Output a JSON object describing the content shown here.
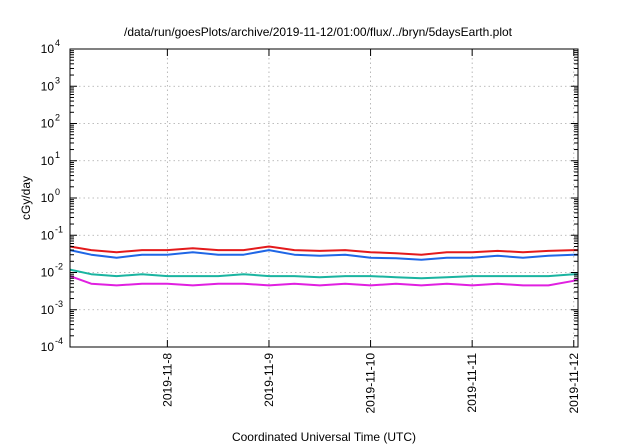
{
  "chart_data": {
    "type": "line",
    "title": "/data/run/goesPlots/archive/2019-11-12/01:00/flux/../bryn/5daysEarth.plot",
    "xlabel": "Coordinated Universal Time (UTC)",
    "ylabel": "cGy/day",
    "y_scale": "log",
    "ylim": [
      0.0001,
      10000
    ],
    "xlim": [
      "2019-11-07T01:00",
      "2019-11-12T01:00"
    ],
    "grid": true,
    "legend": "none",
    "x_ticks": [
      {
        "label": "2019-11-8",
        "value": "2019-11-08T00:00"
      },
      {
        "label": "2019-11-9",
        "value": "2019-11-09T00:00"
      },
      {
        "label": "2019-11-10",
        "value": "2019-11-10T00:00"
      },
      {
        "label": "2019-11-11",
        "value": "2019-11-11T00:00"
      },
      {
        "label": "2019-11-12",
        "value": "2019-11-12T00:00"
      }
    ],
    "y_ticks": [
      {
        "base": "10",
        "exp": "-4",
        "value": 0.0001
      },
      {
        "base": "10",
        "exp": "-3",
        "value": 0.001
      },
      {
        "base": "10",
        "exp": "-2",
        "value": 0.01
      },
      {
        "base": "10",
        "exp": "-1",
        "value": 0.1
      },
      {
        "base": "10",
        "exp": "0",
        "value": 1
      },
      {
        "base": "10",
        "exp": "1",
        "value": 10
      },
      {
        "base": "10",
        "exp": "2",
        "value": 100
      },
      {
        "base": "10",
        "exp": "3",
        "value": 1000
      },
      {
        "base": "10",
        "exp": "4",
        "value": 10000
      }
    ],
    "series": [
      {
        "color": "#e31a1c",
        "x": [
          "2019-11-07T01:00",
          "2019-11-07T06:00",
          "2019-11-07T12:00",
          "2019-11-07T18:00",
          "2019-11-08T00:00",
          "2019-11-08T06:00",
          "2019-11-08T12:00",
          "2019-11-08T18:00",
          "2019-11-09T00:00",
          "2019-11-09T06:00",
          "2019-11-09T12:00",
          "2019-11-09T18:00",
          "2019-11-10T00:00",
          "2019-11-10T06:00",
          "2019-11-10T12:00",
          "2019-11-10T18:00",
          "2019-11-11T00:00",
          "2019-11-11T06:00",
          "2019-11-11T12:00",
          "2019-11-11T18:00",
          "2019-11-12T00:00",
          "2019-11-12T01:00"
        ],
        "y": [
          0.05,
          0.04,
          0.035,
          0.04,
          0.04,
          0.045,
          0.04,
          0.04,
          0.05,
          0.04,
          0.038,
          0.04,
          0.035,
          0.033,
          0.03,
          0.035,
          0.035,
          0.038,
          0.035,
          0.038,
          0.04,
          0.04
        ]
      },
      {
        "color": "#1f66e6",
        "x": [
          "2019-11-07T01:00",
          "2019-11-07T06:00",
          "2019-11-07T12:00",
          "2019-11-07T18:00",
          "2019-11-08T00:00",
          "2019-11-08T06:00",
          "2019-11-08T12:00",
          "2019-11-08T18:00",
          "2019-11-09T00:00",
          "2019-11-09T06:00",
          "2019-11-09T12:00",
          "2019-11-09T18:00",
          "2019-11-10T00:00",
          "2019-11-10T06:00",
          "2019-11-10T12:00",
          "2019-11-10T18:00",
          "2019-11-11T00:00",
          "2019-11-11T06:00",
          "2019-11-11T12:00",
          "2019-11-11T18:00",
          "2019-11-12T00:00",
          "2019-11-12T01:00"
        ],
        "y": [
          0.04,
          0.03,
          0.025,
          0.03,
          0.03,
          0.035,
          0.03,
          0.03,
          0.04,
          0.03,
          0.028,
          0.03,
          0.025,
          0.024,
          0.022,
          0.025,
          0.025,
          0.028,
          0.025,
          0.028,
          0.03,
          0.03
        ]
      },
      {
        "color": "#1ab4a0",
        "x": [
          "2019-11-07T01:00",
          "2019-11-07T06:00",
          "2019-11-07T12:00",
          "2019-11-07T18:00",
          "2019-11-08T00:00",
          "2019-11-08T06:00",
          "2019-11-08T12:00",
          "2019-11-08T18:00",
          "2019-11-09T00:00",
          "2019-11-09T06:00",
          "2019-11-09T12:00",
          "2019-11-09T18:00",
          "2019-11-10T00:00",
          "2019-11-10T06:00",
          "2019-11-10T12:00",
          "2019-11-10T18:00",
          "2019-11-11T00:00",
          "2019-11-11T06:00",
          "2019-11-11T12:00",
          "2019-11-11T18:00",
          "2019-11-12T00:00",
          "2019-11-12T01:00"
        ],
        "y": [
          0.012,
          0.009,
          0.008,
          0.009,
          0.008,
          0.008,
          0.008,
          0.009,
          0.008,
          0.008,
          0.0075,
          0.008,
          0.008,
          0.0075,
          0.007,
          0.0075,
          0.008,
          0.008,
          0.008,
          0.008,
          0.009,
          0.009
        ]
      },
      {
        "color": "#e020e0",
        "x": [
          "2019-11-07T01:00",
          "2019-11-07T06:00",
          "2019-11-07T12:00",
          "2019-11-07T18:00",
          "2019-11-08T00:00",
          "2019-11-08T06:00",
          "2019-11-08T12:00",
          "2019-11-08T18:00",
          "2019-11-09T00:00",
          "2019-11-09T06:00",
          "2019-11-09T12:00",
          "2019-11-09T18:00",
          "2019-11-10T00:00",
          "2019-11-10T06:00",
          "2019-11-10T12:00",
          "2019-11-10T18:00",
          "2019-11-11T00:00",
          "2019-11-11T06:00",
          "2019-11-11T12:00",
          "2019-11-11T18:00",
          "2019-11-12T00:00",
          "2019-11-12T01:00"
        ],
        "y": [
          0.008,
          0.005,
          0.0045,
          0.005,
          0.005,
          0.0045,
          0.005,
          0.005,
          0.0045,
          0.005,
          0.0045,
          0.005,
          0.0045,
          0.005,
          0.0045,
          0.005,
          0.0045,
          0.005,
          0.0045,
          0.0045,
          0.006,
          0.007
        ]
      }
    ]
  }
}
